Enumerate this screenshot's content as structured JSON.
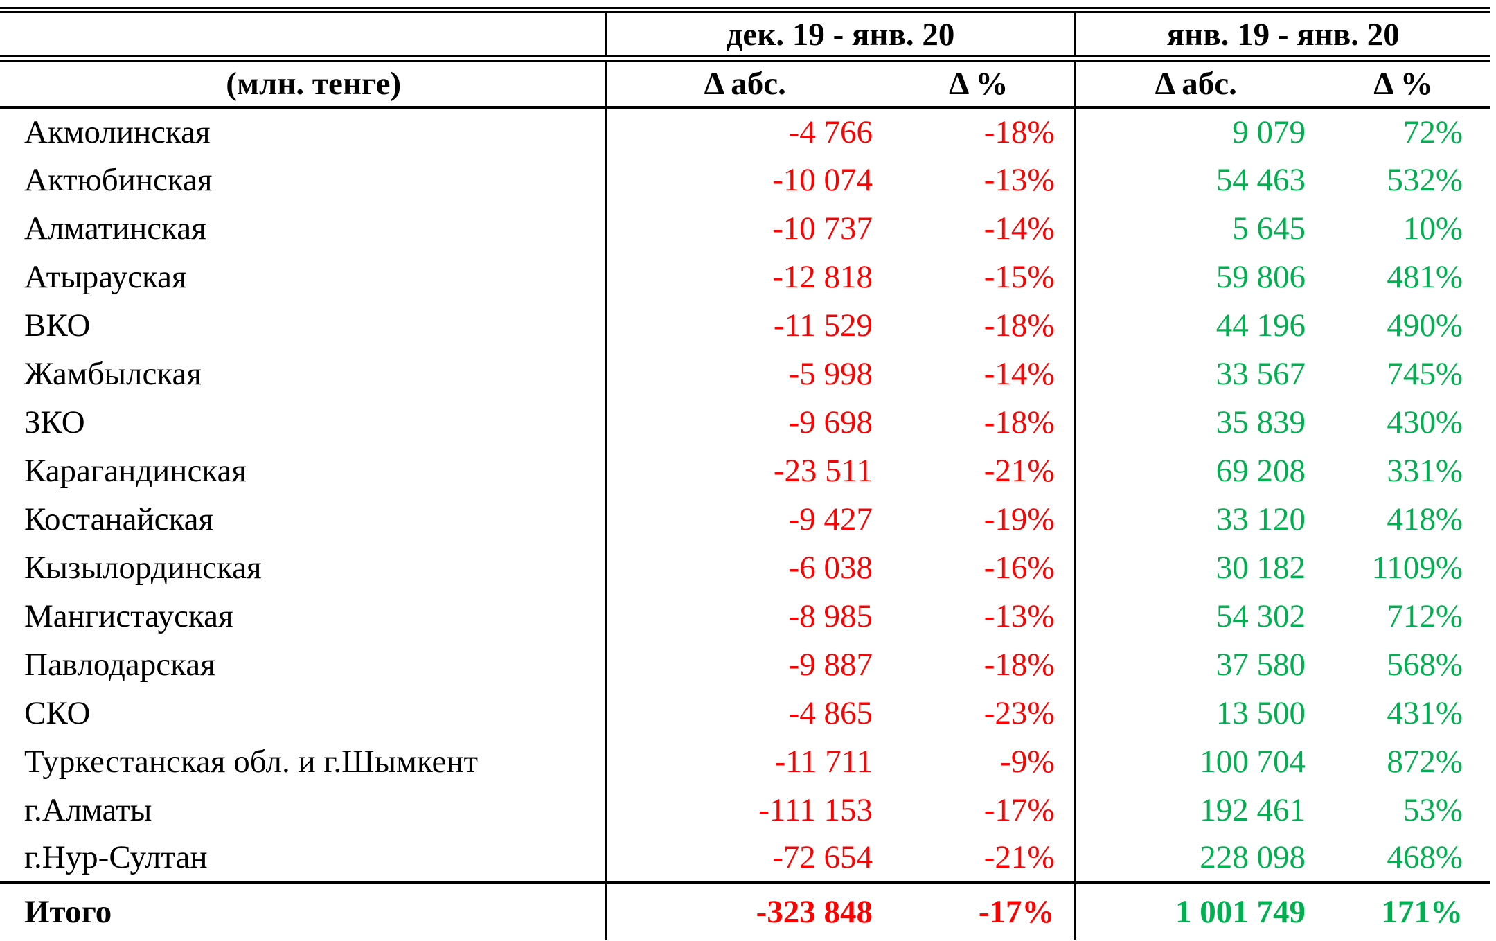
{
  "colors": {
    "negative": "#FF0000",
    "positive": "#00B050",
    "text": "#000000",
    "background": "#FFFFFF"
  },
  "chart_data": {
    "type": "table",
    "unit_label": "(млн. тенге)",
    "column_groups": [
      {
        "label": "дек. 19 - янв. 20"
      },
      {
        "label": "янв. 19 - янв. 20"
      }
    ],
    "sub_headers": [
      "Δ абс.",
      "Δ %",
      "Δ абс.",
      "Δ %"
    ],
    "rows": [
      {
        "region": "Акмолинская",
        "values": [
          "-4 766",
          "-18%",
          "9 079",
          "72%"
        ]
      },
      {
        "region": "Актюбинская",
        "values": [
          "-10 074",
          "-13%",
          "54 463",
          "532%"
        ]
      },
      {
        "region": "Алматинская",
        "values": [
          "-10 737",
          "-14%",
          "5 645",
          "10%"
        ]
      },
      {
        "region": "Атырауская",
        "values": [
          "-12 818",
          "-15%",
          "59 806",
          "481%"
        ]
      },
      {
        "region": "ВКО",
        "values": [
          "-11 529",
          "-18%",
          "44 196",
          "490%"
        ]
      },
      {
        "region": "Жамбылская",
        "values": [
          "-5 998",
          "-14%",
          "33 567",
          "745%"
        ]
      },
      {
        "region": "ЗКО",
        "values": [
          "-9 698",
          "-18%",
          "35 839",
          "430%"
        ]
      },
      {
        "region": "Карагандинская",
        "values": [
          "-23 511",
          "-21%",
          "69 208",
          "331%"
        ]
      },
      {
        "region": "Костанайская",
        "values": [
          "-9 427",
          "-19%",
          "33 120",
          "418%"
        ]
      },
      {
        "region": "Кызылординская",
        "values": [
          "-6 038",
          "-16%",
          "30 182",
          "1109%"
        ]
      },
      {
        "region": "Мангистауская",
        "values": [
          "-8 985",
          "-13%",
          "54 302",
          "712%"
        ]
      },
      {
        "region": "Павлодарская",
        "values": [
          "-9 887",
          "-18%",
          "37 580",
          "568%"
        ]
      },
      {
        "region": "СКО",
        "values": [
          "-4 865",
          "-23%",
          "13 500",
          "431%"
        ]
      },
      {
        "region": "Туркестанская обл. и г.Шымкент",
        "values": [
          "-11 711",
          "-9%",
          "100 704",
          "872%"
        ]
      },
      {
        "region": "г.Алматы",
        "values": [
          "-111 153",
          "-17%",
          "192 461",
          "53%"
        ]
      },
      {
        "region": "г.Нур-Султан",
        "values": [
          "-72 654",
          "-21%",
          "228 098",
          "468%"
        ]
      }
    ],
    "total_row": {
      "region": "Итого",
      "values": [
        "-323 848",
        "-17%",
        "1 001 749",
        "171%"
      ]
    }
  }
}
